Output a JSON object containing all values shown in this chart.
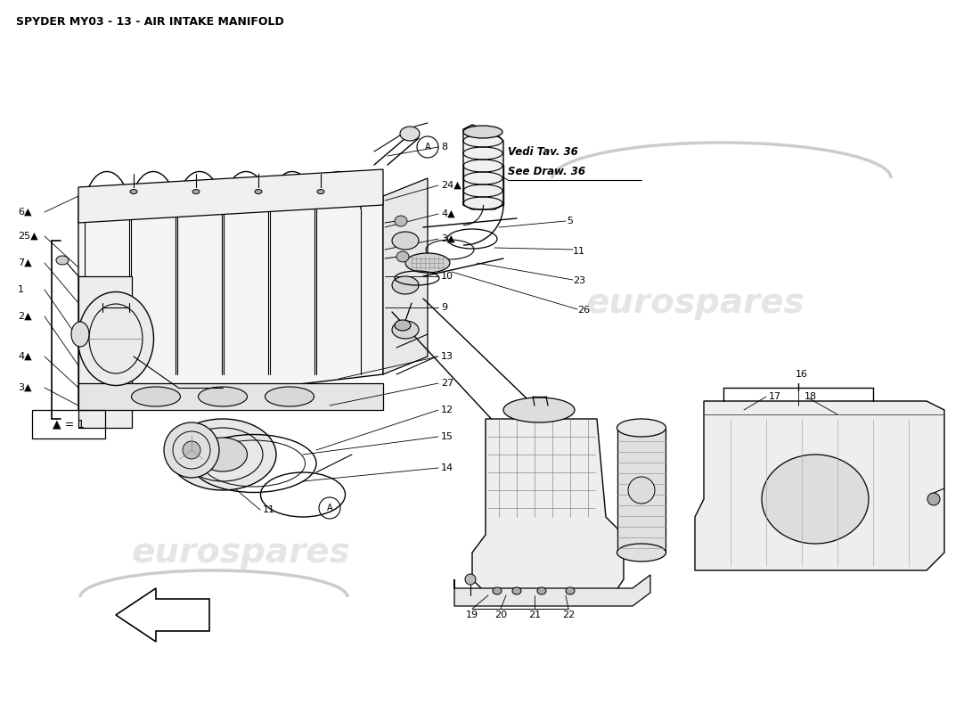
{
  "title": "SPYDER MY03 - 13 - AIR INTAKE MANIFOLD",
  "watermark": "eurospares",
  "watermark_color": "#c0c0c0",
  "background_color": "#ffffff",
  "line_color": "#000000",
  "text_color": "#000000",
  "vedi_tav": "Vedi Tav. 36",
  "see_draw": "See Draw. 36",
  "legend_text": "▲ = 1",
  "fig_w": 11.0,
  "fig_h": 8.0,
  "dpi": 100
}
